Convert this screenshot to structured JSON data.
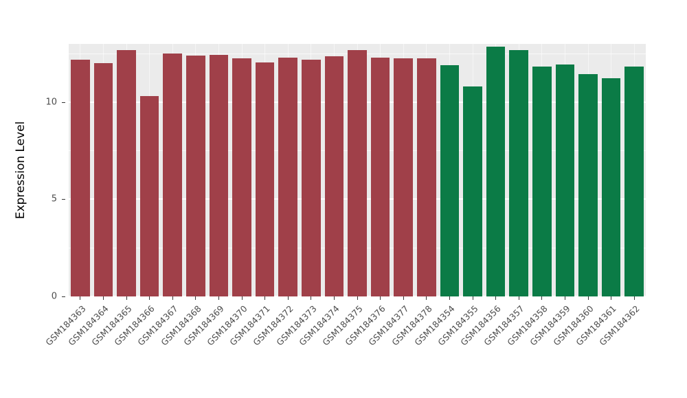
{
  "chart_data": {
    "type": "bar",
    "title": "",
    "xlabel": "",
    "ylabel": "Expression Level",
    "ylim": [
      0,
      13.0
    ],
    "yticks": [
      0,
      5,
      10
    ],
    "yticks_minor": [
      2.5,
      7.5,
      12.5
    ],
    "grid": true,
    "legend_position": "none",
    "panel_background": "#EBEBEB",
    "grid_color": "#FFFFFF",
    "axis_text_color": "#4D4D4D",
    "group_colors": {
      "group1": "#A04049",
      "group2": "#0B7B46"
    },
    "categories": [
      "GSM184363",
      "GSM184364",
      "GSM184365",
      "GSM184366",
      "GSM184367",
      "GSM184368",
      "GSM184369",
      "GSM184370",
      "GSM184371",
      "GSM184372",
      "GSM184373",
      "GSM184374",
      "GSM184375",
      "GSM184376",
      "GSM184377",
      "GSM184378",
      "GSM184354",
      "GSM184355",
      "GSM184356",
      "GSM184357",
      "GSM184358",
      "GSM184359",
      "GSM184360",
      "GSM184361",
      "GSM184362"
    ],
    "values": [
      12.2,
      12.0,
      12.7,
      10.3,
      12.5,
      12.4,
      12.45,
      12.25,
      12.05,
      12.3,
      12.2,
      12.35,
      12.7,
      12.3,
      12.25,
      12.25,
      11.9,
      10.8,
      12.85,
      12.7,
      11.85,
      11.95,
      11.45,
      11.25,
      11.85
    ],
    "groups": [
      "group1",
      "group1",
      "group1",
      "group1",
      "group1",
      "group1",
      "group1",
      "group1",
      "group1",
      "group1",
      "group1",
      "group1",
      "group1",
      "group1",
      "group1",
      "group1",
      "group2",
      "group2",
      "group2",
      "group2",
      "group2",
      "group2",
      "group2",
      "group2",
      "group2"
    ]
  }
}
